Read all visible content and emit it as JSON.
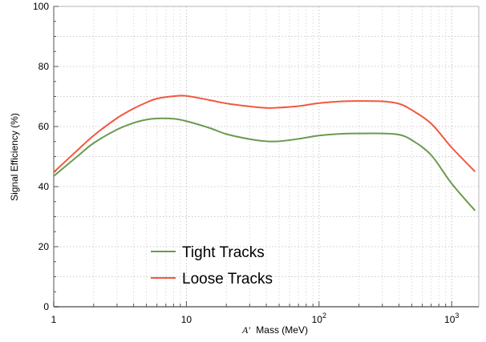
{
  "chart_data": {
    "type": "line",
    "xlabel_symbol": "A'",
    "xlabel": "Mass (MeV)",
    "ylabel": "Signal Efficiency (%)",
    "x_scale": "log",
    "xlim": [
      1,
      1600
    ],
    "ylim": [
      0,
      100
    ],
    "grid": true,
    "legend_position": "lower-left",
    "y_ticks": [
      0,
      20,
      40,
      60,
      80,
      100
    ],
    "y_tick_labels": [
      "0",
      "20",
      "40",
      "60",
      "80",
      "100"
    ],
    "x_major_ticks": [
      1,
      10,
      100,
      1000
    ],
    "x_tick_labels": [
      {
        "base": "1",
        "exp": ""
      },
      {
        "base": "10",
        "exp": ""
      },
      {
        "base": "10",
        "exp": "2"
      },
      {
        "base": "10",
        "exp": "3"
      }
    ],
    "series": [
      {
        "name": "Tight Tracks",
        "color": "#6b9a4e",
        "x": [
          1,
          1.5,
          2,
          3,
          4,
          5,
          6,
          8,
          10,
          15,
          20,
          30,
          40,
          50,
          70,
          100,
          150,
          200,
          300,
          400,
          500,
          700,
          1000,
          1500
        ],
        "y": [
          43.5,
          50,
          54.5,
          59,
          61.2,
          62.3,
          62.7,
          62.6,
          61.8,
          59.5,
          57.5,
          55.8,
          55.1,
          55.1,
          55.9,
          57,
          57.6,
          57.7,
          57.7,
          57.3,
          55.5,
          50.5,
          41,
          32
        ]
      },
      {
        "name": "Loose Tracks",
        "color": "#f2583e",
        "x": [
          1,
          1.5,
          2,
          3,
          4,
          5,
          6,
          8,
          10,
          15,
          20,
          30,
          40,
          50,
          70,
          100,
          150,
          200,
          300,
          400,
          500,
          700,
          1000,
          1500
        ],
        "y": [
          44.8,
          52,
          57,
          62.8,
          66,
          68,
          69.3,
          70.1,
          70.2,
          68.8,
          67.7,
          66.7,
          66.2,
          66.3,
          66.8,
          67.8,
          68.4,
          68.5,
          68.4,
          67.6,
          65.5,
          61,
          53,
          45
        ]
      }
    ]
  }
}
